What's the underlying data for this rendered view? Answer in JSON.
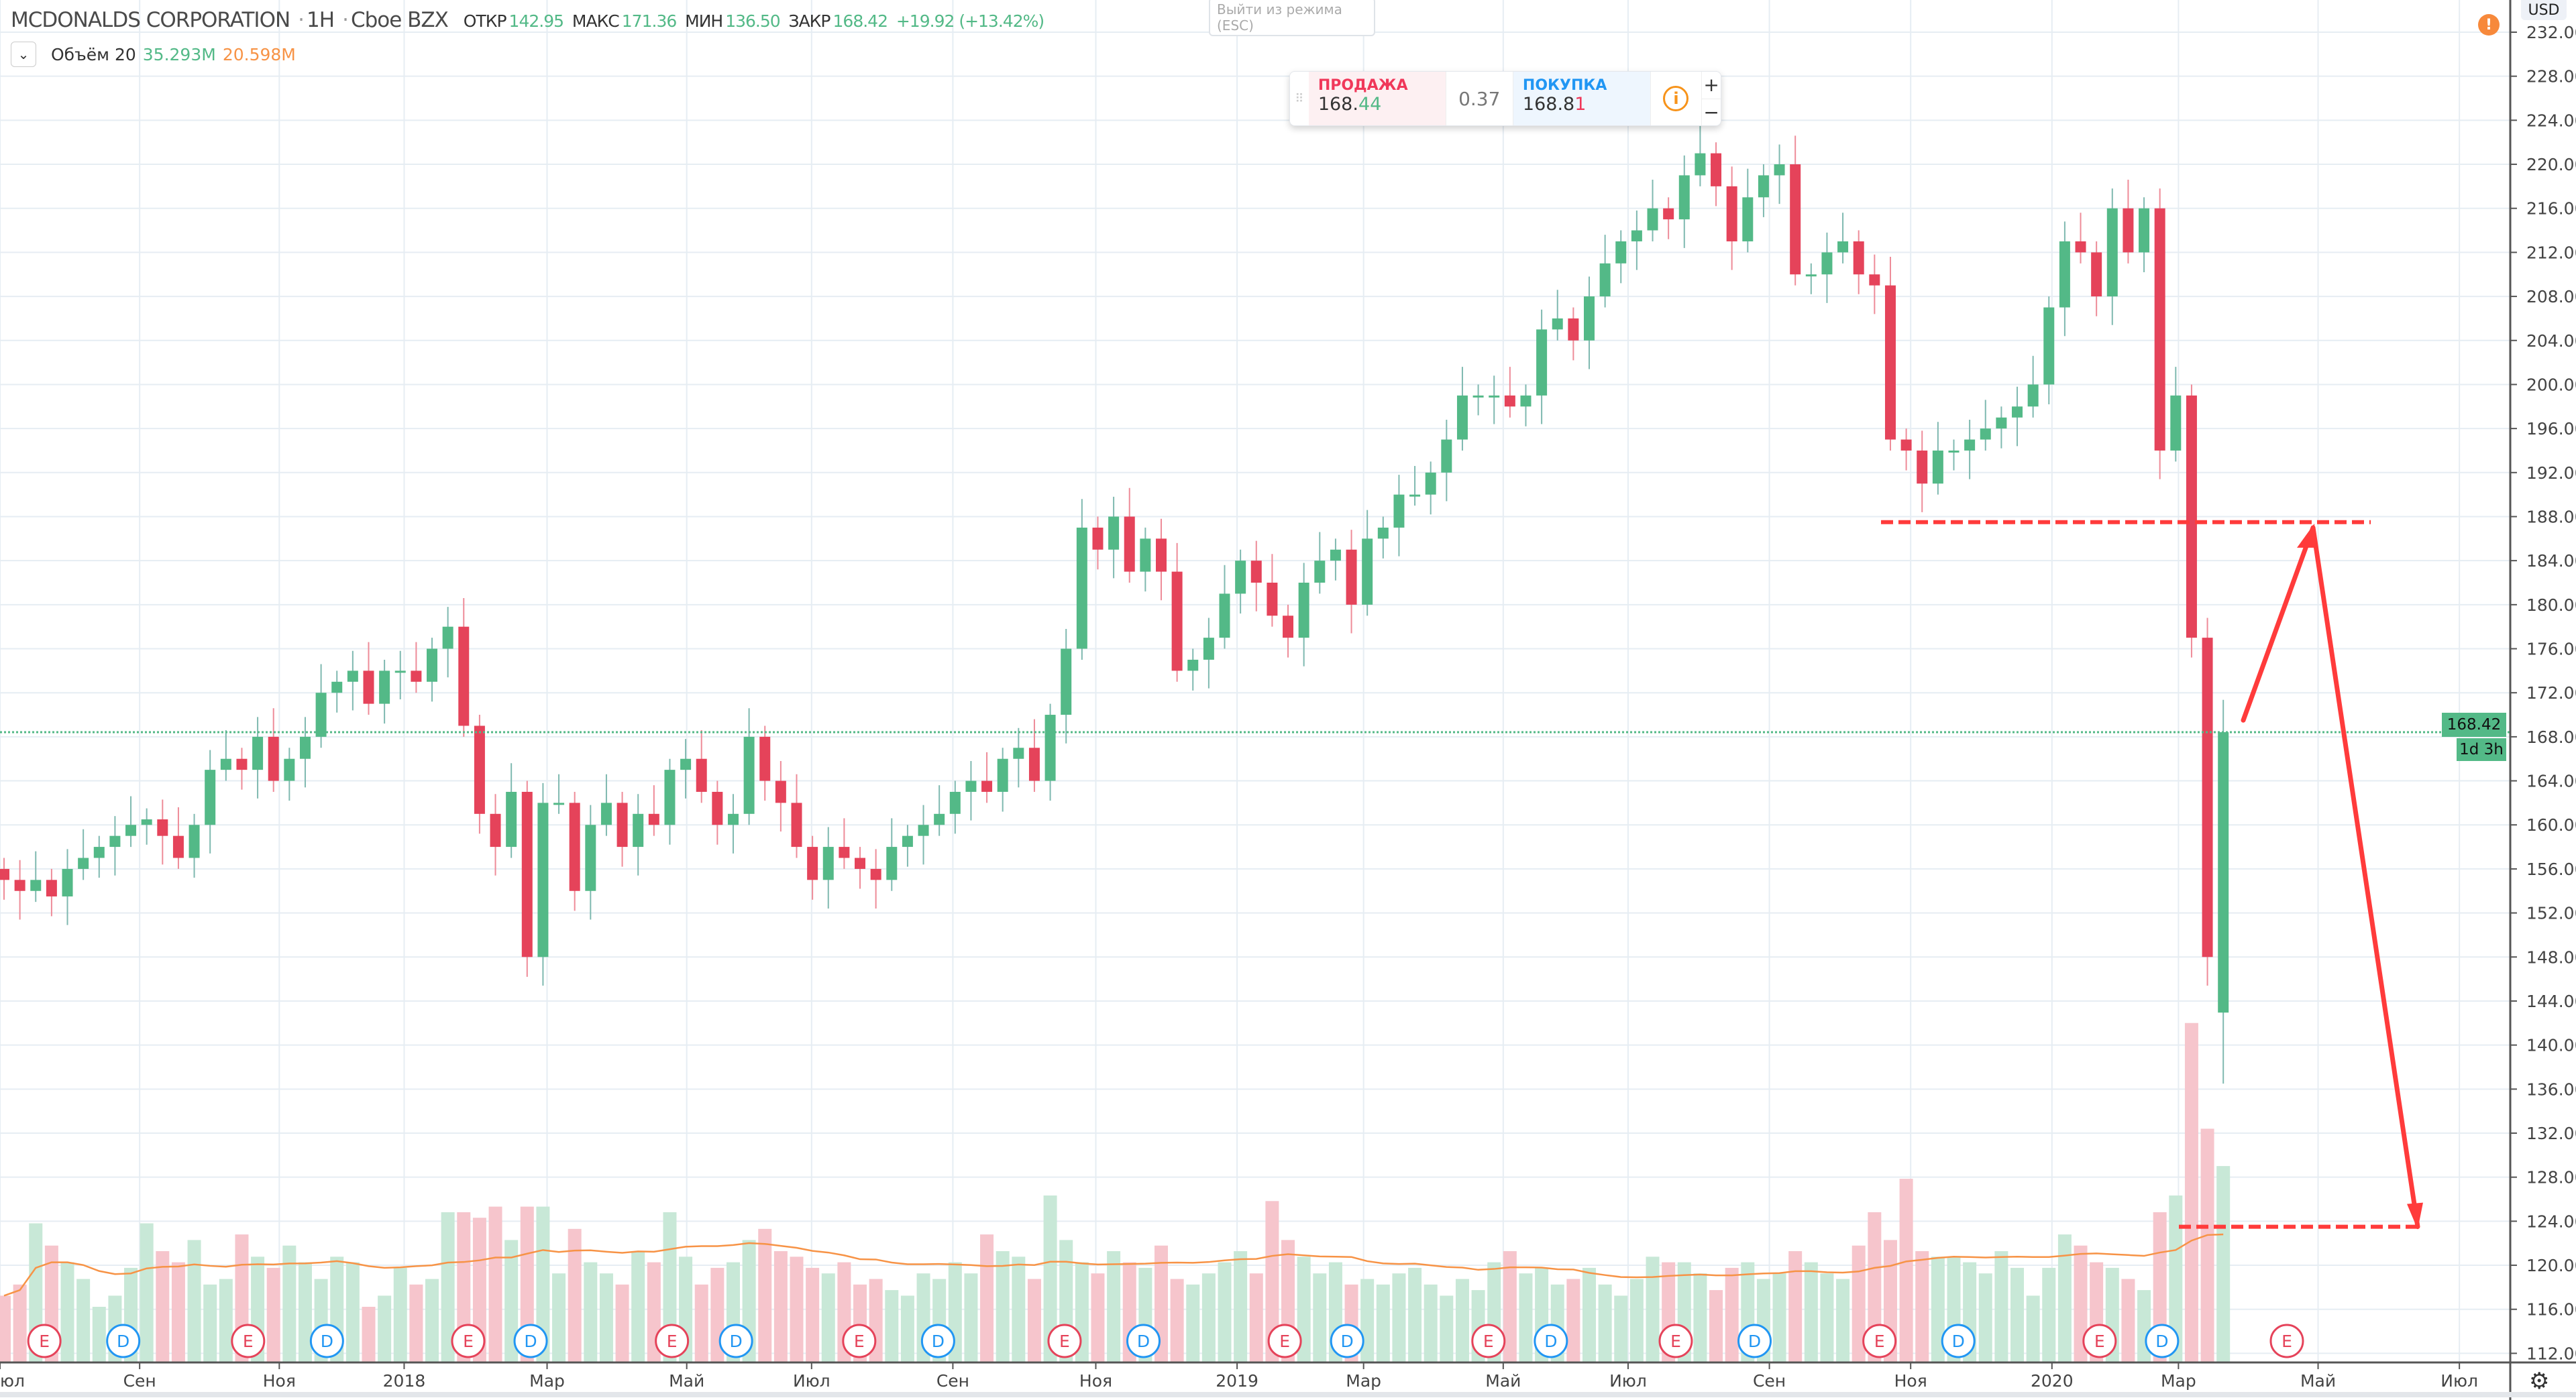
{
  "header": {
    "symbol": "MCDONALDS CORPORATION",
    "interval": "1H",
    "exchange": "Cboe BZX",
    "open_label": "ОТКР",
    "open": "142.95",
    "high_label": "МАКС",
    "high": "171.36",
    "low_label": "МИН",
    "low": "136.50",
    "close_label": "ЗАКР",
    "close": "168.42",
    "change": "+19.92 (+13.42%)"
  },
  "volume_indicator": {
    "label": "Объём 20",
    "value": "35.293M",
    "ma": "20.598M"
  },
  "tooltip": {
    "line1": "Выйти из режима",
    "line2": "(ESC)"
  },
  "trade_panel": {
    "sell_label": "ПРОДАЖА",
    "sell_main": "168.",
    "sell_tail": "44",
    "spread": "0.37",
    "buy_label": "ПОКУПКА",
    "buy_main": "168.8",
    "buy_tail": "1",
    "plus": "+",
    "minus": "−",
    "info": "i"
  },
  "price_axis": {
    "currency": "USD",
    "ticks": [
      "232.00",
      "228.00",
      "224.00",
      "220.00",
      "216.00",
      "212.00",
      "208.00",
      "204.00",
      "200.00",
      "196.00",
      "192.00",
      "188.00",
      "184.00",
      "180.00",
      "176.00",
      "172.00",
      "168.00",
      "164.00",
      "160.00",
      "156.00",
      "152.00",
      "148.00",
      "144.00",
      "140.00",
      "136.00",
      "132.00",
      "128.00",
      "124.00",
      "120.00",
      "116.00",
      "112.00"
    ],
    "last_price": "168.42",
    "countdown": "1d 3h",
    "warning": "!"
  },
  "time_axis": [
    "юл",
    "Сен",
    "Ноя",
    "2018",
    "Мар",
    "Май",
    "Июл",
    "Сен",
    "Ноя",
    "2019",
    "Мар",
    "Май",
    "Июл",
    "Сен",
    "Ноя",
    "2020",
    "Мар",
    "Май",
    "Июл"
  ],
  "events": [
    "E",
    "D",
    "E",
    "D",
    "E",
    "D",
    "E",
    "D",
    "E",
    "D",
    "E",
    "D",
    "E",
    "D",
    "E",
    "D",
    "E",
    "D",
    "E",
    "D",
    "E",
    "D",
    "E"
  ],
  "colors": {
    "up": "#53b987",
    "down": "#e5435a",
    "annotation": "#ff3b3b",
    "ma": "#f79346"
  },
  "chart_data": {
    "type": "candlestick",
    "first_open": 156,
    "last_candle": {
      "open": 142.95,
      "high": 171.36,
      "low": 136.5,
      "close": 168.42
    },
    "closes": [
      155,
      154,
      155,
      153.5,
      156,
      157,
      158,
      159,
      160,
      160.5,
      159,
      157,
      160,
      165,
      166,
      165,
      168,
      164,
      166,
      168,
      172,
      173,
      174,
      171,
      174,
      174,
      173,
      176,
      178,
      169,
      161,
      158,
      163,
      148,
      162,
      162,
      154,
      160,
      162,
      158,
      161,
      160,
      165,
      166,
      163,
      160,
      161,
      168,
      164,
      162,
      158,
      155,
      158,
      157,
      156,
      155,
      158,
      159,
      160,
      161,
      163,
      164,
      163,
      166,
      167,
      164,
      170,
      176,
      187,
      185,
      188,
      183,
      186,
      183,
      174,
      175,
      177,
      181,
      184,
      182,
      179,
      177,
      182,
      184,
      185,
      180,
      186,
      187,
      190,
      190,
      192,
      195,
      199,
      199,
      199,
      198,
      199,
      205,
      206,
      204,
      208,
      211,
      213,
      214,
      216,
      215,
      219,
      221,
      218,
      213,
      217,
      219,
      220,
      210,
      210,
      212,
      213,
      210,
      209,
      195,
      194,
      191,
      194,
      194,
      195,
      196,
      197,
      198,
      200,
      207,
      213,
      212,
      208,
      216,
      212,
      216,
      194,
      199,
      177,
      148,
      168.42
    ],
    "volumes_m": [
      12,
      14,
      25,
      21,
      18,
      15,
      10,
      12,
      17,
      25,
      20,
      18,
      22,
      14,
      15,
      23,
      19,
      17,
      21,
      18,
      15,
      19,
      18,
      10,
      12,
      17,
      14,
      15,
      27,
      27,
      26,
      28,
      22,
      28,
      28,
      16,
      24,
      18,
      16,
      14,
      20,
      18,
      27,
      19,
      14,
      17,
      18,
      22,
      24,
      20,
      19,
      17,
      16,
      18,
      14,
      15,
      13,
      12,
      16,
      15,
      18,
      16,
      23,
      20,
      19,
      15,
      30,
      22,
      18,
      16,
      20,
      18,
      17,
      21,
      15,
      14,
      16,
      18,
      20,
      16,
      29,
      22,
      19,
      16,
      18,
      14,
      15,
      14,
      16,
      17,
      14,
      12,
      15,
      13,
      18,
      20,
      16,
      17,
      14,
      15,
      17,
      14,
      12,
      15,
      19,
      18,
      18,
      16,
      13,
      17,
      18,
      15,
      16,
      20,
      18,
      16,
      15,
      21,
      27,
      22,
      33,
      20,
      19,
      19,
      18,
      16,
      20,
      17,
      12,
      17,
      23,
      21,
      18,
      17,
      15,
      13,
      27,
      30,
      61,
      42,
      35.293
    ],
    "volume_ma_period": 20,
    "annotations": {
      "resistance_level": 187.5,
      "target_level": 123.5,
      "arrow_path_prices": [
        169.5,
        187,
        123.5
      ]
    }
  }
}
